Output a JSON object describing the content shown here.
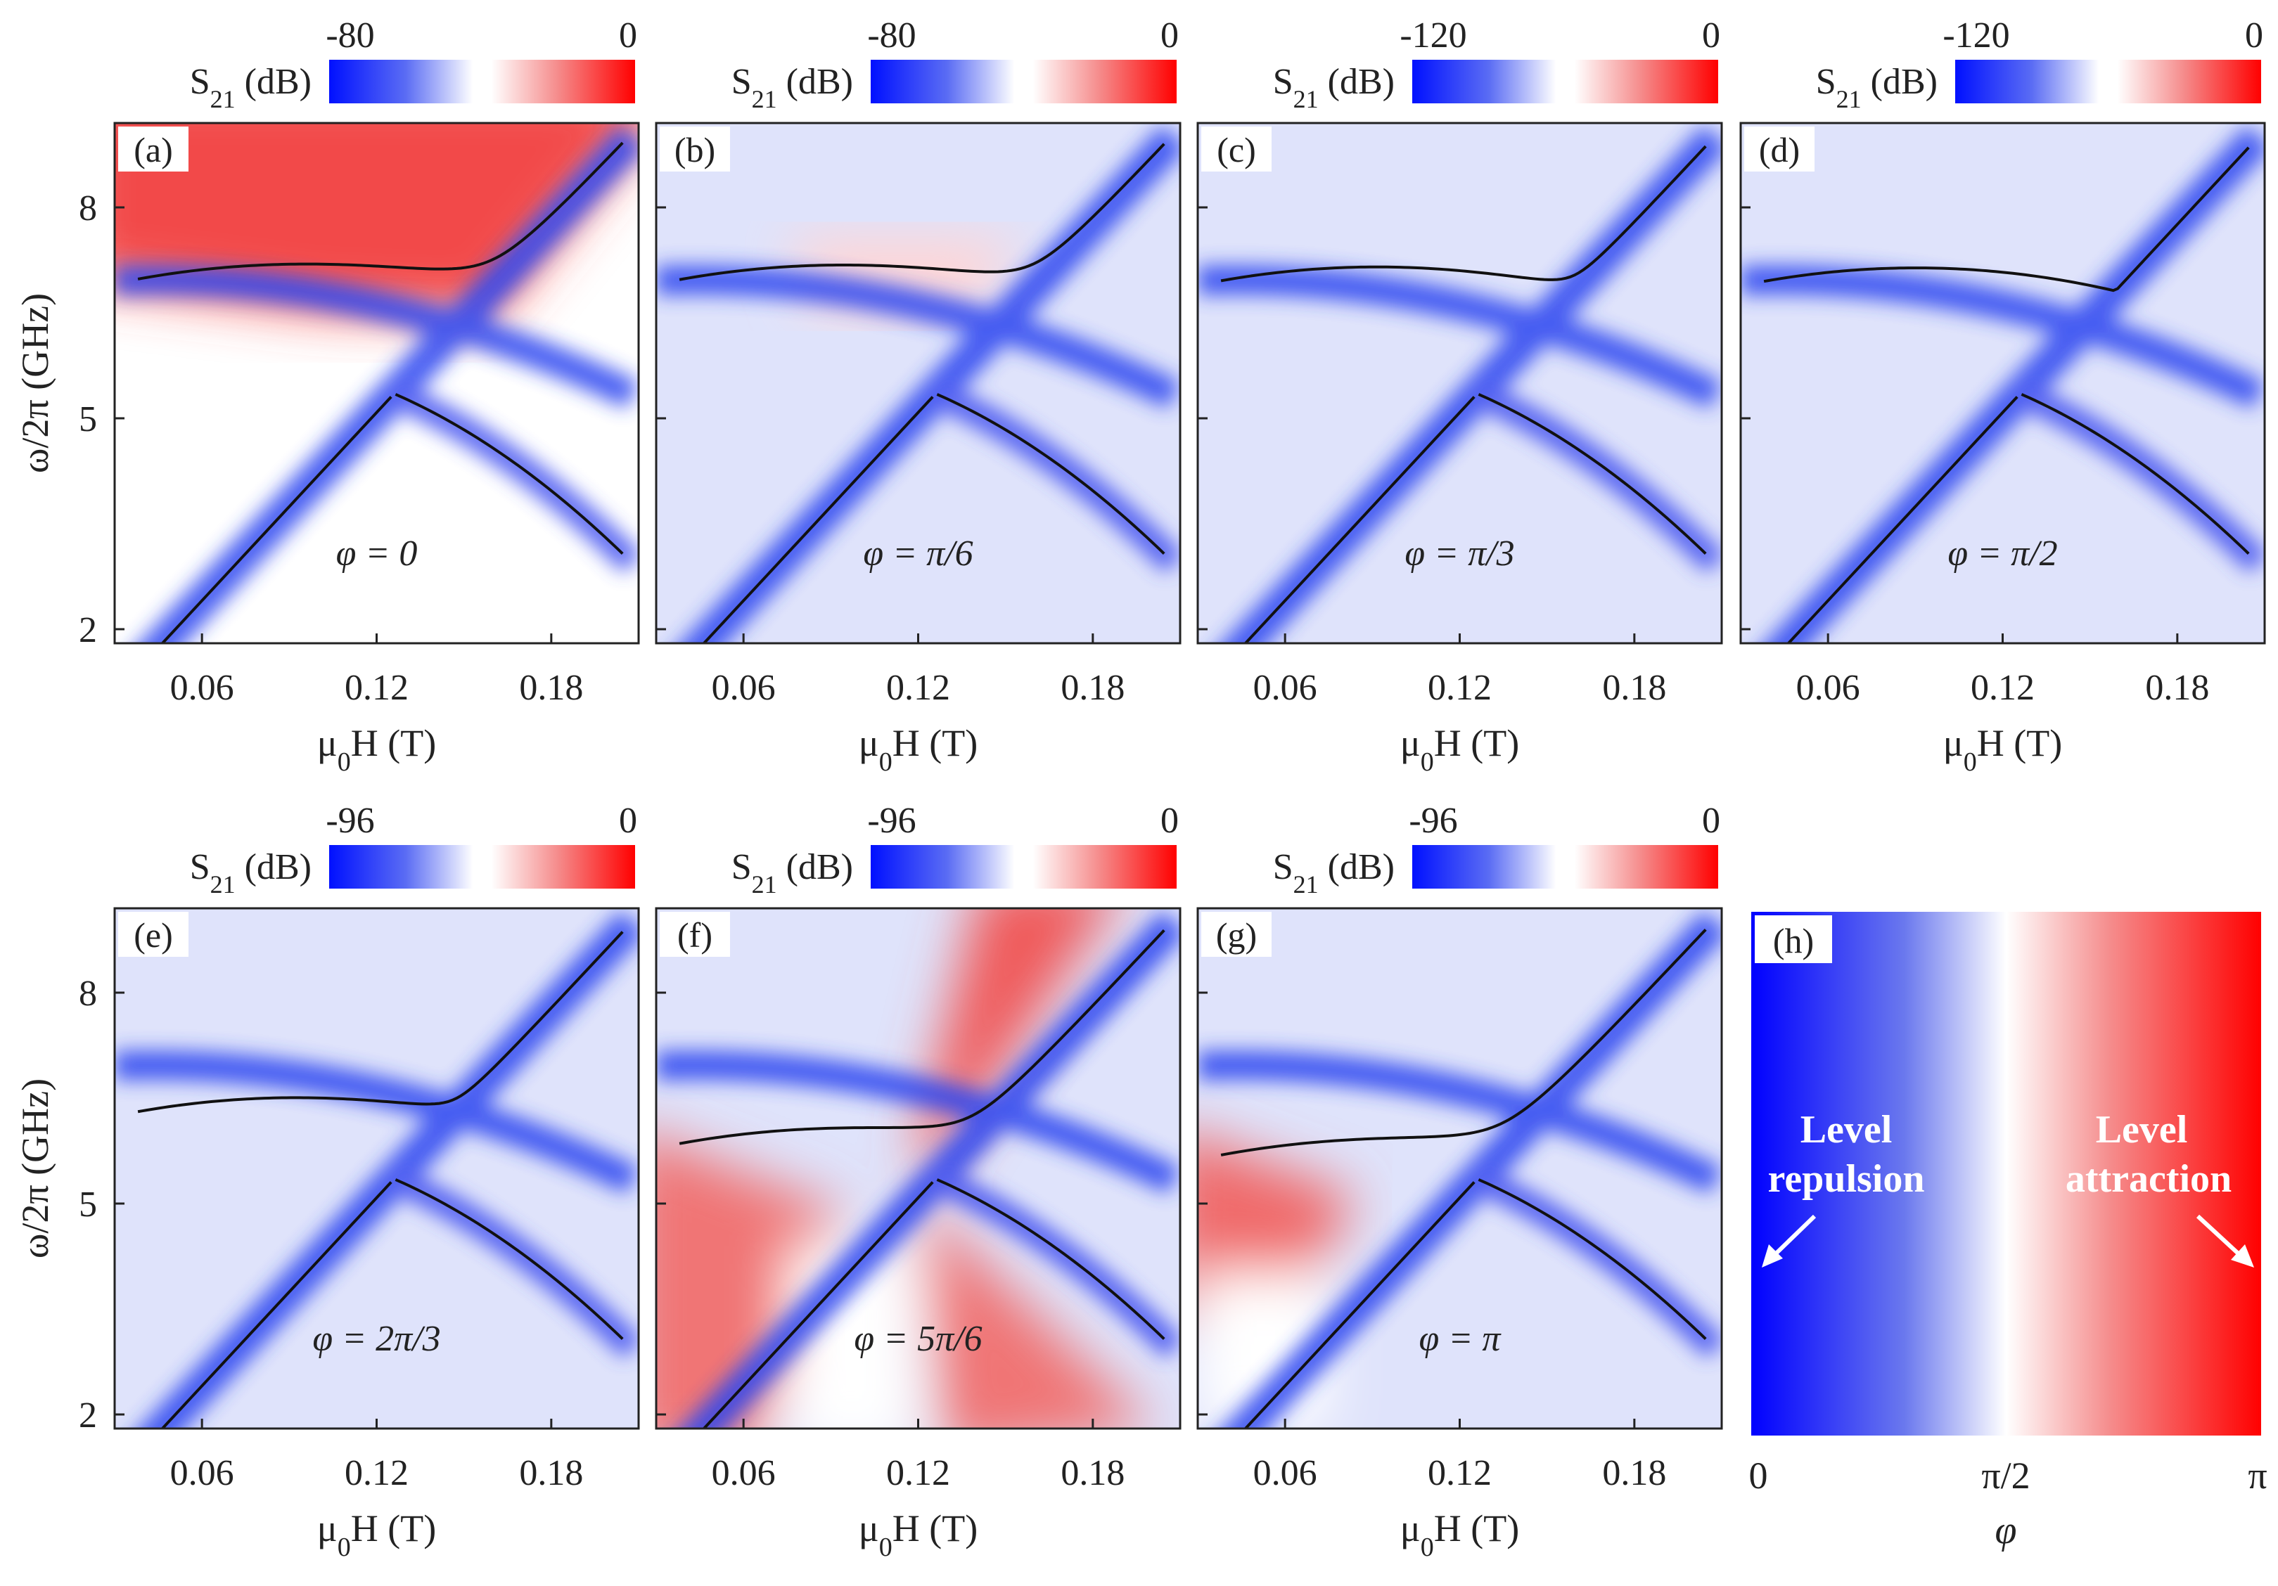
{
  "figure": {
    "colorbar_label": "S",
    "colorbar_label_sub": "21",
    "colorbar_label_unit": " (dB)",
    "xlabel_main": "μ",
    "xlabel_sub": "0",
    "xlabel_tail": "H (T)",
    "ylabel": "ω/2π (GHz)",
    "colors": {
      "negative": "#0000ff",
      "neutral": "#ffffff",
      "positive": "#ff0000",
      "curve": "#111111"
    }
  },
  "chart_data": [
    {
      "panel": "(a)",
      "type": "heatmap",
      "phi_label": "φ = 0",
      "phi": 0.0,
      "colorbar_ticks": [
        "-80",
        "0"
      ],
      "colorbar_range": [
        -80,
        0
      ],
      "xlim": [
        0.03,
        0.21
      ],
      "ylim": [
        1.8,
        9.2
      ],
      "xticks": [
        0.06,
        0.12,
        0.18
      ],
      "xtick_labels": [
        "0.06",
        "0.12",
        "0.18"
      ],
      "yticks": [
        2,
        5,
        8
      ],
      "ytick_labels": [
        "2",
        "5",
        "8"
      ]
    },
    {
      "panel": "(b)",
      "type": "heatmap",
      "phi_label": "φ = π/6",
      "phi": 0.5236,
      "colorbar_ticks": [
        "-80",
        "0"
      ],
      "colorbar_range": [
        -80,
        0
      ],
      "xlim": [
        0.03,
        0.21
      ],
      "ylim": [
        1.8,
        9.2
      ],
      "xticks": [
        0.06,
        0.12,
        0.18
      ],
      "xtick_labels": [
        "0.06",
        "0.12",
        "0.18"
      ],
      "yticks": [
        2,
        5,
        8
      ],
      "ytick_labels": [
        "2",
        "5",
        "8"
      ]
    },
    {
      "panel": "(c)",
      "type": "heatmap",
      "phi_label": "φ = π/3",
      "phi": 1.0472,
      "colorbar_ticks": [
        "-120",
        "0"
      ],
      "colorbar_range": [
        -120,
        0
      ],
      "xlim": [
        0.03,
        0.21
      ],
      "ylim": [
        1.8,
        9.2
      ],
      "xticks": [
        0.06,
        0.12,
        0.18
      ],
      "xtick_labels": [
        "0.06",
        "0.12",
        "0.18"
      ],
      "yticks": [
        2,
        5,
        8
      ],
      "ytick_labels": [
        "2",
        "5",
        "8"
      ]
    },
    {
      "panel": "(d)",
      "type": "heatmap",
      "phi_label": "φ = π/2",
      "phi": 1.5708,
      "colorbar_ticks": [
        "-120",
        "0"
      ],
      "colorbar_range": [
        -120,
        0
      ],
      "xlim": [
        0.03,
        0.21
      ],
      "ylim": [
        1.8,
        9.2
      ],
      "xticks": [
        0.06,
        0.12,
        0.18
      ],
      "xtick_labels": [
        "0.06",
        "0.12",
        "0.18"
      ],
      "yticks": [
        2,
        5,
        8
      ],
      "ytick_labels": [
        "2",
        "5",
        "8"
      ]
    },
    {
      "panel": "(e)",
      "type": "heatmap",
      "phi_label": "φ = 2π/3",
      "phi": 2.0944,
      "colorbar_ticks": [
        "-96",
        "0"
      ],
      "colorbar_range": [
        -96,
        0
      ],
      "xlim": [
        0.03,
        0.21
      ],
      "ylim": [
        1.8,
        9.2
      ],
      "xticks": [
        0.06,
        0.12,
        0.18
      ],
      "xtick_labels": [
        "0.06",
        "0.12",
        "0.18"
      ],
      "yticks": [
        2,
        5,
        8
      ],
      "ytick_labels": [
        "2",
        "5",
        "8"
      ]
    },
    {
      "panel": "(f)",
      "type": "heatmap",
      "phi_label": "φ = 5π/6",
      "phi": 2.618,
      "colorbar_ticks": [
        "-96",
        "0"
      ],
      "colorbar_range": [
        -96,
        0
      ],
      "xlim": [
        0.03,
        0.21
      ],
      "ylim": [
        1.8,
        9.2
      ],
      "xticks": [
        0.06,
        0.12,
        0.18
      ],
      "xtick_labels": [
        "0.06",
        "0.12",
        "0.18"
      ],
      "yticks": [
        2,
        5,
        8
      ],
      "ytick_labels": [
        "2",
        "5",
        "8"
      ]
    },
    {
      "panel": "(g)",
      "type": "heatmap",
      "phi_label": "φ = π",
      "phi": 3.1416,
      "colorbar_ticks": [
        "-96",
        "0"
      ],
      "colorbar_range": [
        -96,
        0
      ],
      "xlim": [
        0.03,
        0.21
      ],
      "ylim": [
        1.8,
        9.2
      ],
      "xticks": [
        0.06,
        0.12,
        0.18
      ],
      "xtick_labels": [
        "0.06",
        "0.12",
        "0.18"
      ],
      "yticks": [
        2,
        5,
        8
      ],
      "ytick_labels": [
        "2",
        "5",
        "8"
      ]
    }
  ],
  "panel_h": {
    "label": "(h)",
    "left_text": [
      "Level",
      "repulsion"
    ],
    "right_text": [
      "Level",
      "attraction"
    ],
    "xtick_labels": [
      "0",
      "π/2",
      "π"
    ],
    "xlabel": "φ"
  }
}
